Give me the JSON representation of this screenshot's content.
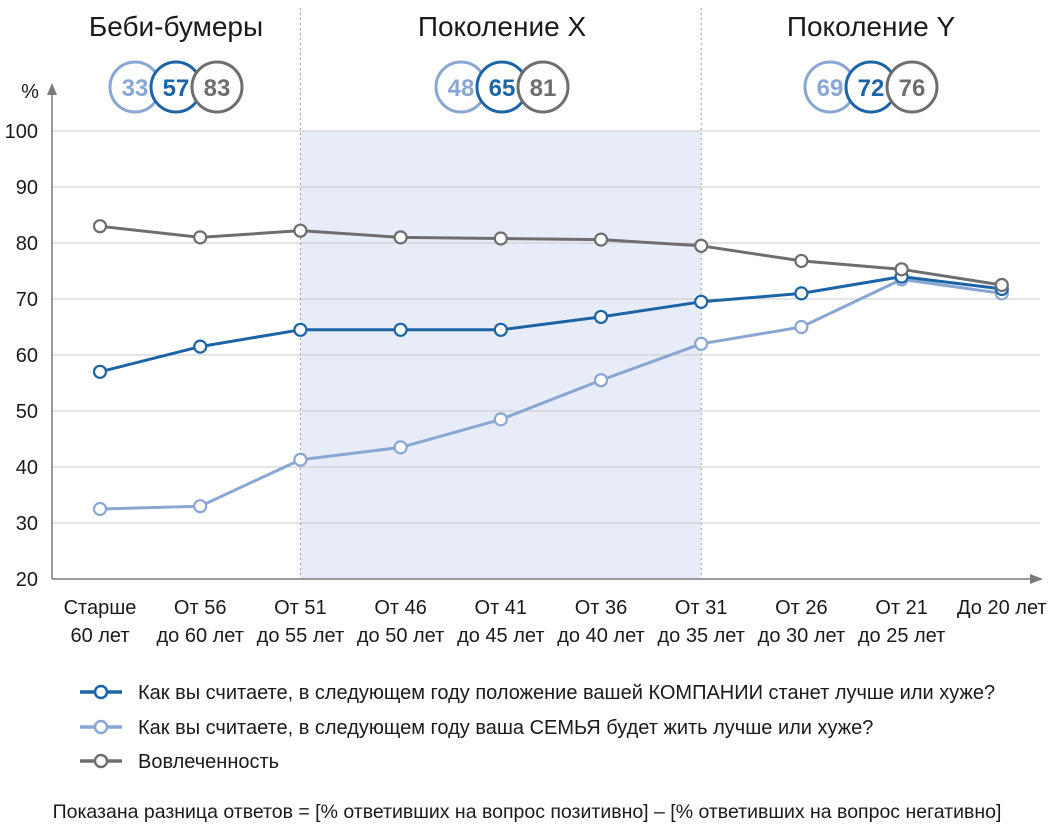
{
  "chart_data": {
    "type": "line",
    "ylabel": "%",
    "ylim": [
      20,
      100
    ],
    "yticks": [
      20,
      30,
      40,
      50,
      60,
      70,
      80,
      90,
      100
    ],
    "grid": true,
    "categories": [
      [
        "Старше",
        "60 лет"
      ],
      [
        "От 56",
        "до 60 лет"
      ],
      [
        "От 51",
        "до 55 лет"
      ],
      [
        "От 46",
        "до 50 лет"
      ],
      [
        "От 41",
        "до 45 лет"
      ],
      [
        "От 36",
        "до 40 лет"
      ],
      [
        "От 31",
        "до 35 лет"
      ],
      [
        "От 26",
        "до 30 лет"
      ],
      [
        "От 21",
        "до 25 лет"
      ],
      [
        "До 20 лет"
      ]
    ],
    "series": [
      {
        "key": "company",
        "name": "Как вы считаете, в следующем году положение вашей КОМПАНИИ станет лучше или хуже?",
        "color": "#1c64a6",
        "values": [
          57,
          61.5,
          64.5,
          64.5,
          64.5,
          66.8,
          69.5,
          71,
          74,
          71.8
        ]
      },
      {
        "key": "family",
        "name": "Как вы считаете, в следующем году ваша СЕМЬЯ будет жить лучше или хуже?",
        "color": "#8aa6d3",
        "values": [
          32.5,
          33,
          41.3,
          43.5,
          48.5,
          55.5,
          62,
          65,
          73.5,
          71
        ]
      },
      {
        "key": "engagement",
        "name": "Вовлеченность",
        "color": "#6e6e6e",
        "values": [
          83,
          81,
          82.2,
          81,
          80.8,
          80.6,
          79.5,
          76.8,
          75.3,
          72.5
        ]
      }
    ],
    "shaded_range": {
      "from_category": 2,
      "to_category": 6,
      "color": "#e8ecf8"
    },
    "generations": [
      {
        "title": "Беби-бумеры",
        "from_category": 0,
        "to_category": 2,
        "badges": [
          33,
          57,
          83
        ]
      },
      {
        "title": "Поколение X",
        "from_category": 2,
        "to_category": 6,
        "badges": [
          48,
          65,
          81
        ]
      },
      {
        "title": "Поколение Y",
        "from_category": 6,
        "to_category": 9,
        "badges": [
          69,
          72,
          76
        ]
      }
    ],
    "note": "Показана разница ответов = [% ответивших на вопрос позитивно] – [% ответивших на вопрос негативно]"
  }
}
